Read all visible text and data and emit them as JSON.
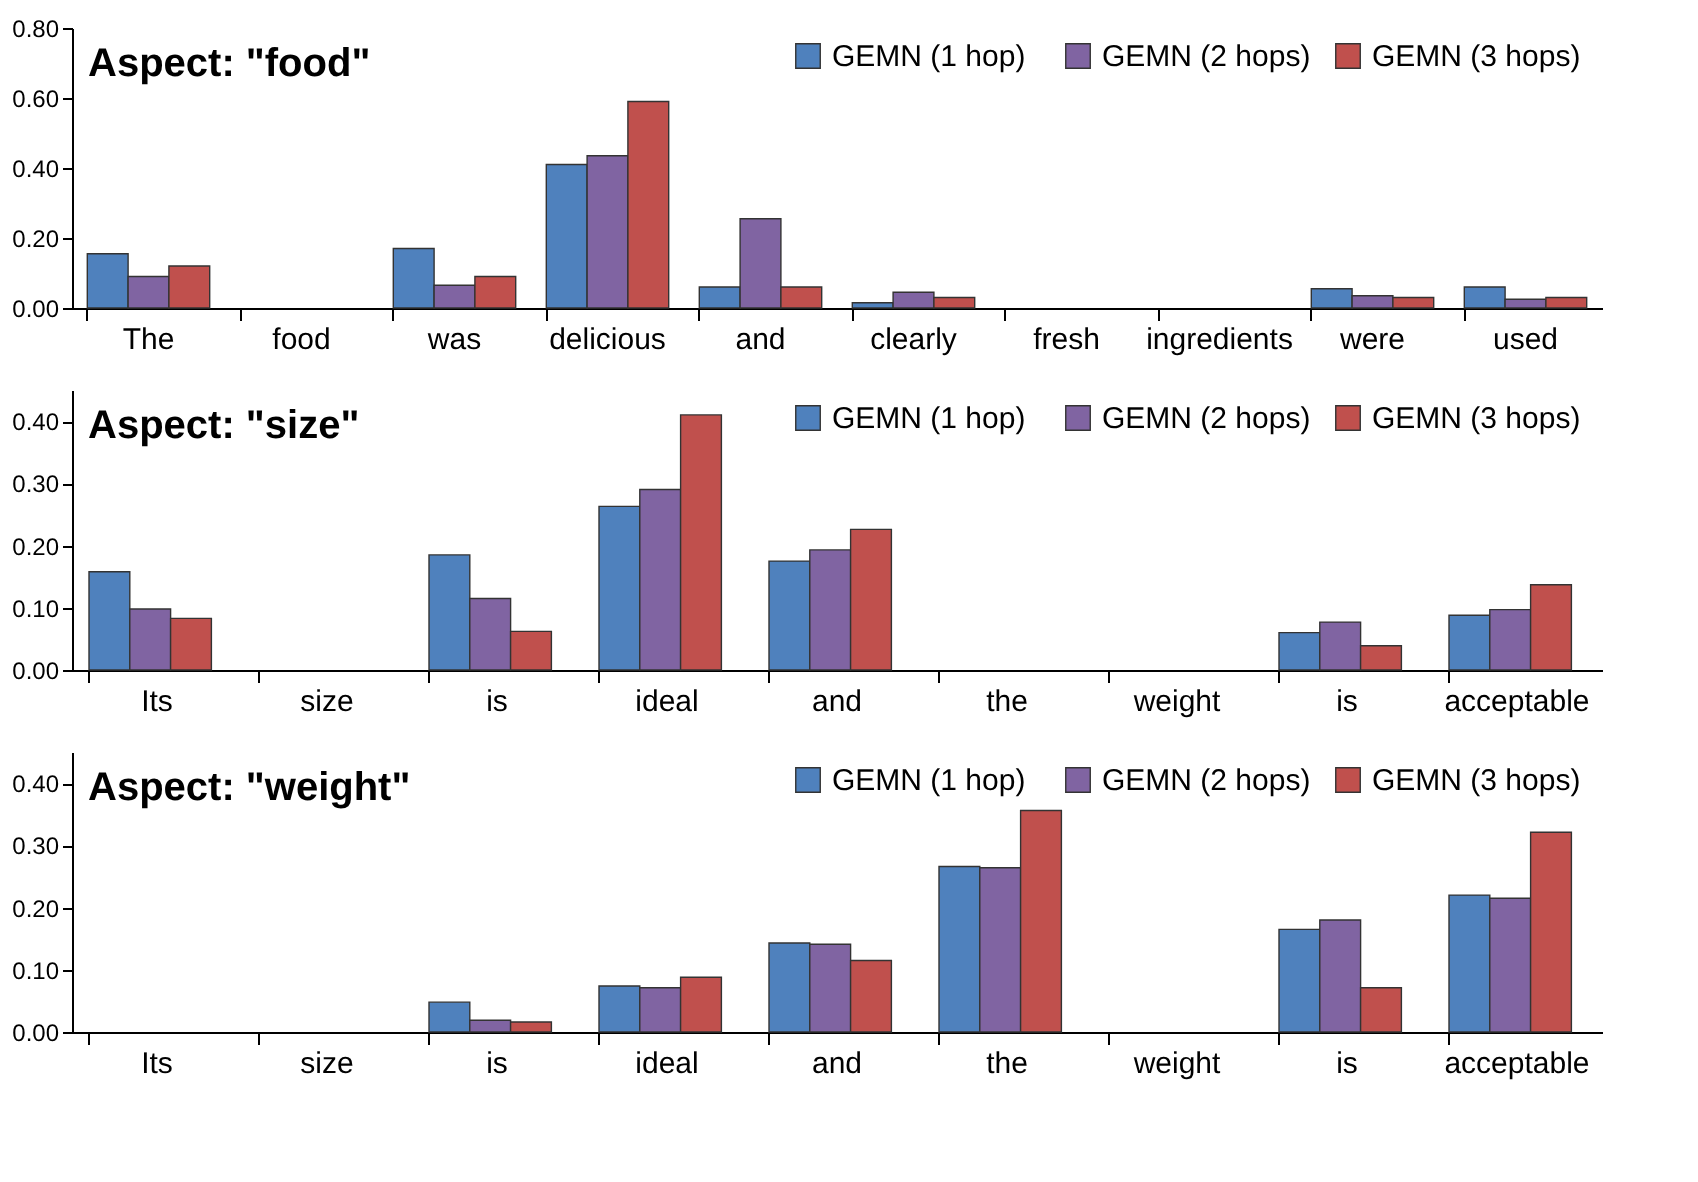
{
  "chart_data": [
    {
      "type": "bar",
      "title": "Aspect: \"food\"",
      "categories": [
        "The",
        "food",
        "was",
        "delicious",
        "and",
        "clearly",
        "fresh",
        "ingredients",
        "were",
        "used"
      ],
      "series": [
        {
          "name": "GEMN (1 hop)",
          "color": "#4f81bd",
          "values": [
            0.155,
            null,
            0.17,
            0.41,
            0.06,
            0.015,
            null,
            null,
            0.055,
            0.06
          ]
        },
        {
          "name": "GEMN (2 hops)",
          "color": "#8064a2",
          "values": [
            0.09,
            null,
            0.065,
            0.435,
            0.255,
            0.045,
            null,
            null,
            0.035,
            0.025
          ]
        },
        {
          "name": "GEMN (3 hops)",
          "color": "#c0504d",
          "values": [
            0.12,
            null,
            0.09,
            0.59,
            0.06,
            0.03,
            null,
            null,
            0.03,
            0.03
          ]
        }
      ],
      "ylim": [
        0,
        0.8
      ],
      "yticks": [
        {
          "value": 0,
          "label": "0.00"
        },
        {
          "value": 0.2,
          "label": "0.20"
        },
        {
          "value": 0.4,
          "label": "0.40"
        },
        {
          "value": 0.6,
          "label": "0.60"
        },
        {
          "value": 0.8,
          "label": "0.80"
        }
      ],
      "grid": false,
      "legend": "top right"
    },
    {
      "type": "bar",
      "title": "Aspect: \"size\"",
      "categories": [
        "Its",
        "size",
        "is",
        "ideal",
        "and",
        "the",
        "weight",
        "is",
        "acceptable"
      ],
      "series": [
        {
          "name": "GEMN (1 hop)",
          "color": "#4f81bd",
          "values": [
            0.158,
            null,
            0.185,
            0.263,
            0.175,
            null,
            null,
            0.06,
            0.088
          ]
        },
        {
          "name": "GEMN (2 hops)",
          "color": "#8064a2",
          "values": [
            0.098,
            null,
            0.115,
            0.29,
            0.193,
            null,
            null,
            0.077,
            0.097
          ]
        },
        {
          "name": "GEMN (3 hops)",
          "color": "#c0504d",
          "values": [
            0.083,
            null,
            0.062,
            0.41,
            0.226,
            null,
            null,
            0.039,
            0.137
          ]
        }
      ],
      "ylim": [
        0,
        0.45
      ],
      "yticks": [
        {
          "value": 0,
          "label": "0.00"
        },
        {
          "value": 0.1,
          "label": "0.10"
        },
        {
          "value": 0.2,
          "label": "0.20"
        },
        {
          "value": 0.3,
          "label": "0.30"
        },
        {
          "value": 0.4,
          "label": "0.40"
        }
      ],
      "grid": false,
      "legend": "top right"
    },
    {
      "type": "bar",
      "title": "Aspect: \"weight\"",
      "categories": [
        "Its",
        "size",
        "is",
        "ideal",
        "and",
        "the",
        "weight",
        "is",
        "acceptable"
      ],
      "series": [
        {
          "name": "GEMN (1 hop)",
          "color": "#4f81bd",
          "values": [
            null,
            null,
            0.048,
            0.074,
            0.143,
            0.266,
            null,
            0.165,
            0.22
          ]
        },
        {
          "name": "GEMN (2 hops)",
          "color": "#8064a2",
          "values": [
            null,
            null,
            0.019,
            0.071,
            0.141,
            0.264,
            null,
            0.18,
            0.215
          ]
        },
        {
          "name": "GEMN (3 hops)",
          "color": "#c0504d",
          "values": [
            null,
            null,
            0.016,
            0.088,
            0.115,
            0.356,
            null,
            0.071,
            0.321
          ]
        }
      ],
      "ylim": [
        0,
        0.45
      ],
      "yticks": [
        {
          "value": 0,
          "label": "0.00"
        },
        {
          "value": 0.1,
          "label": "0.10"
        },
        {
          "value": 0.2,
          "label": "0.20"
        },
        {
          "value": 0.3,
          "label": "0.30"
        },
        {
          "value": 0.4,
          "label": "0.40"
        }
      ],
      "grid": false,
      "legend": "top right"
    }
  ]
}
